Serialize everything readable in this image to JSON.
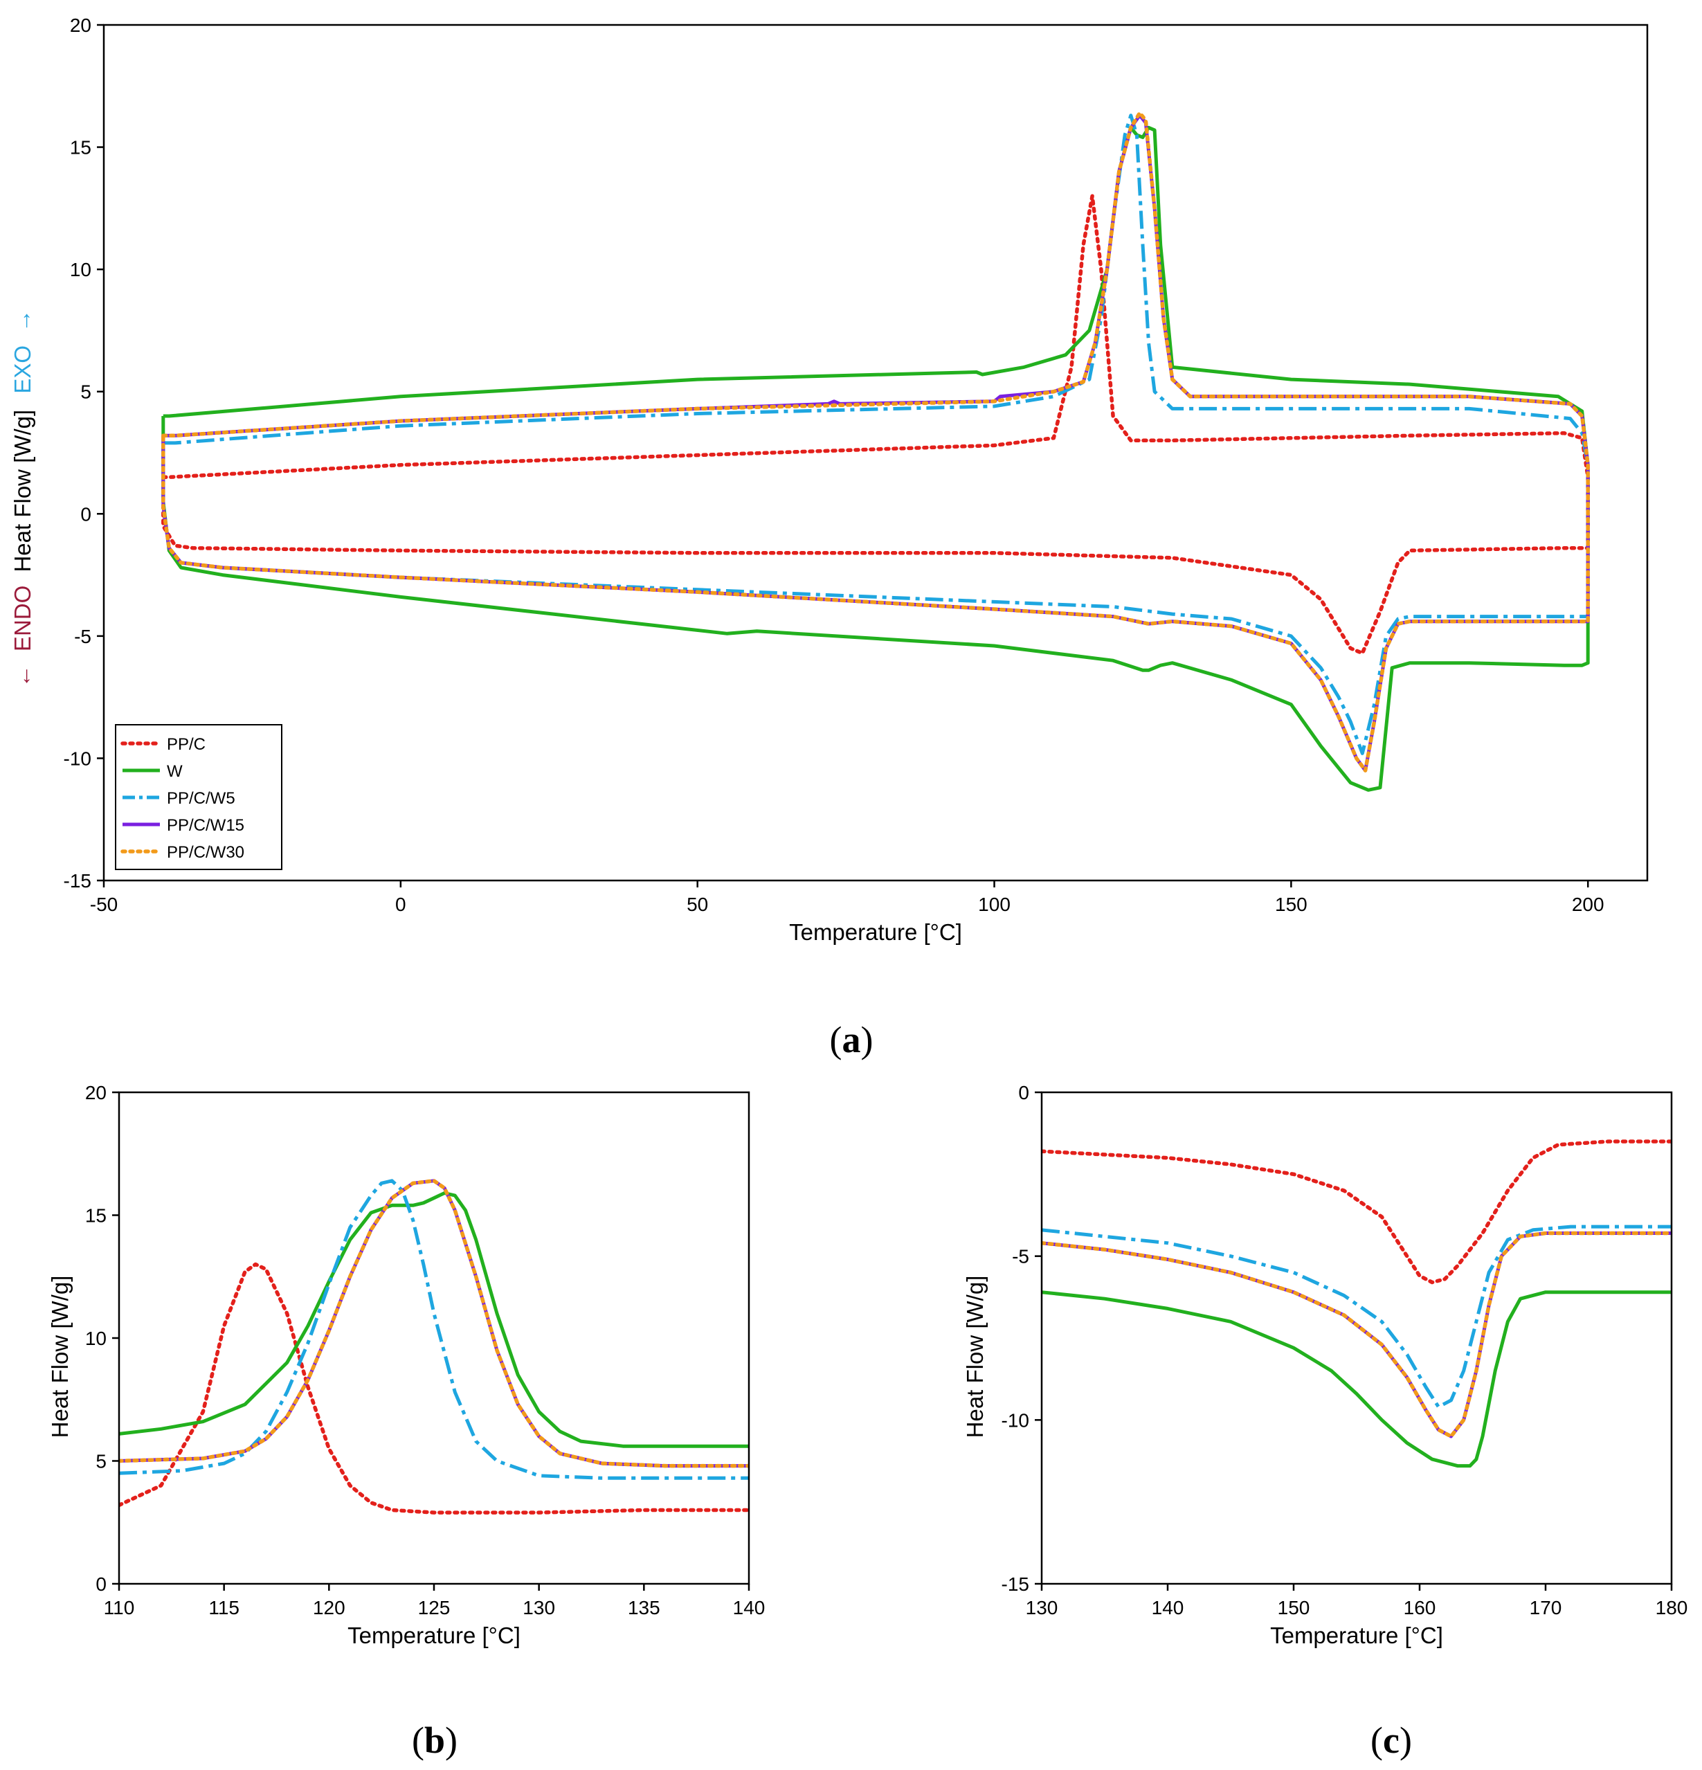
{
  "colors": {
    "PP/C": "#e3201b",
    "W": "#22b01e",
    "PP/C/W5": "#1ea6e0",
    "PP/C/W15": "#7a1fe0",
    "PP/C/W30": "#f29a1a",
    "endo": "#9b1a3a",
    "exo": "#2aa6e0"
  },
  "panels": {
    "a": {
      "open": "(",
      "letter": "a",
      "close": ")"
    },
    "b": {
      "open": "(",
      "letter": "b",
      "close": ")"
    },
    "c": {
      "open": "(",
      "letter": "c",
      "close": ")"
    }
  },
  "ylabel_a": {
    "arrow_left": "←",
    "endo": "ENDO",
    "middle": "Heat Flow [W/g]",
    "exo": "EXO",
    "arrow_right": "→"
  },
  "chart_data": [
    {
      "id": "a",
      "type": "line",
      "xlabel": "Temperature [°C]",
      "ylabel": "← ENDO Heat Flow [W/g] EXO →",
      "xlim": [
        -50,
        210
      ],
      "ylim": [
        -15,
        20
      ],
      "xticks": [
        -50,
        0,
        50,
        100,
        150,
        200
      ],
      "yticks": [
        -15,
        -10,
        -5,
        0,
        5,
        10,
        15,
        20
      ],
      "legend": {
        "position": "bottom-left",
        "entries": [
          "PP/C",
          "W",
          "PP/C/W5",
          "PP/C/W15",
          "PP/C/W30"
        ]
      },
      "series": [
        {
          "name": "PP/C",
          "style": "dotted",
          "x": [
            -40,
            -39,
            0,
            50,
            100,
            110,
            113,
            115,
            116.5,
            118,
            120,
            123,
            130,
            170,
            196,
            199,
            200,
            200,
            199,
            196,
            170,
            168,
            165,
            162,
            160,
            155,
            150,
            130,
            100,
            50,
            0,
            -35,
            -38,
            -40,
            -40
          ],
          "y": [
            1.5,
            1.5,
            2.0,
            2.4,
            2.8,
            3.1,
            6.0,
            11.0,
            13.0,
            10.0,
            4.0,
            3.0,
            3.0,
            3.2,
            3.3,
            3.1,
            1.5,
            -1.4,
            -1.4,
            -1.4,
            -1.5,
            -2.0,
            -4.0,
            -5.7,
            -5.5,
            -3.5,
            -2.5,
            -1.8,
            -1.6,
            -1.6,
            -1.5,
            -1.4,
            -1.3,
            -0.5,
            1.5
          ]
        },
        {
          "name": "W",
          "style": "solid",
          "x": [
            -40,
            -39,
            0,
            50,
            97,
            98,
            105,
            112,
            116,
            119,
            121,
            123,
            124,
            125,
            126,
            127,
            128,
            130,
            150,
            170,
            195,
            199,
            200,
            200,
            199,
            196,
            180,
            170,
            167,
            165,
            163,
            160,
            155,
            150,
            140,
            130,
            128,
            126,
            125,
            120,
            100,
            60,
            55,
            0,
            -30,
            -37,
            -39,
            -40,
            -40
          ],
          "y": [
            4.0,
            4.0,
            4.8,
            5.5,
            5.8,
            5.7,
            6.0,
            6.5,
            7.5,
            10.0,
            14.0,
            15.8,
            15.5,
            15.4,
            15.8,
            15.7,
            11.0,
            6.0,
            5.5,
            5.3,
            4.8,
            4.2,
            2.0,
            -6.1,
            -6.2,
            -6.2,
            -6.1,
            -6.1,
            -6.3,
            -11.2,
            -11.3,
            -11.0,
            -9.5,
            -7.8,
            -6.8,
            -6.1,
            -6.2,
            -6.4,
            -6.4,
            -6.0,
            -5.4,
            -4.8,
            -4.9,
            -3.4,
            -2.5,
            -2.2,
            -1.5,
            0.5,
            4.0
          ]
        },
        {
          "name": "PP/C/W5",
          "style": "dashdot",
          "x": [
            -40,
            -38,
            0,
            50,
            100,
            110,
            116,
            118,
            120,
            122,
            123,
            124,
            125,
            126,
            127,
            130,
            150,
            180,
            197,
            199,
            200,
            200,
            198,
            170,
            168,
            166,
            164,
            162,
            160,
            158,
            155,
            150,
            140,
            130,
            120,
            100,
            50,
            0,
            -30,
            -37,
            -39,
            -40,
            -40
          ],
          "y": [
            2.9,
            2.9,
            3.6,
            4.1,
            4.4,
            4.8,
            5.5,
            8.0,
            12.0,
            15.5,
            16.3,
            15.5,
            11.0,
            7.0,
            5.0,
            4.3,
            4.3,
            4.3,
            3.9,
            3.3,
            2.0,
            -4.2,
            -4.2,
            -4.2,
            -4.3,
            -5.0,
            -7.8,
            -9.8,
            -8.5,
            -7.5,
            -6.3,
            -5.0,
            -4.3,
            -4.1,
            -3.8,
            -3.6,
            -3.1,
            -2.6,
            -2.2,
            -2.0,
            -1.4,
            0.3,
            2.9
          ]
        },
        {
          "name": "PP/C/W15",
          "style": "solid",
          "x": [
            -40,
            -38,
            0,
            50,
            72,
            73,
            74,
            100,
            101,
            110,
            115,
            117,
            119,
            121,
            123,
            124.5,
            125.5,
            127,
            128.5,
            130,
            133,
            150,
            180,
            197,
            199,
            200,
            200,
            198,
            170,
            168,
            166,
            164,
            162.5,
            161,
            158,
            155,
            150,
            140,
            130,
            126,
            120,
            100,
            50,
            0,
            -30,
            -37,
            -39,
            -40,
            -40
          ],
          "y": [
            3.2,
            3.2,
            3.8,
            4.3,
            4.5,
            4.6,
            4.5,
            4.6,
            4.8,
            5.0,
            5.4,
            7.0,
            10.0,
            14.0,
            15.8,
            16.3,
            16.0,
            12.5,
            8.0,
            5.5,
            4.8,
            4.8,
            4.8,
            4.5,
            4.0,
            2.0,
            -4.4,
            -4.4,
            -4.4,
            -4.5,
            -5.5,
            -8.5,
            -10.5,
            -10.0,
            -8.3,
            -6.8,
            -5.3,
            -4.6,
            -4.4,
            -4.5,
            -4.2,
            -3.9,
            -3.2,
            -2.6,
            -2.2,
            -2.0,
            -1.4,
            0.3,
            3.2
          ]
        },
        {
          "name": "PP/C/W30",
          "style": "dotted",
          "x": [
            -40,
            -38,
            0,
            50,
            100,
            110,
            115,
            117,
            119,
            121,
            123,
            124.5,
            125.5,
            127,
            128.5,
            130,
            133,
            150,
            180,
            197,
            199,
            200,
            200,
            198,
            170,
            168,
            166,
            164,
            162.5,
            161,
            158,
            155,
            150,
            140,
            130,
            126,
            120,
            100,
            50,
            0,
            -30,
            -37,
            -39,
            -40,
            -40
          ],
          "y": [
            3.2,
            3.2,
            3.8,
            4.3,
            4.6,
            5.0,
            5.4,
            7.0,
            10.0,
            14.0,
            15.8,
            16.4,
            16.1,
            12.5,
            8.0,
            5.5,
            4.8,
            4.8,
            4.8,
            4.5,
            4.0,
            2.0,
            -4.4,
            -4.4,
            -4.4,
            -4.5,
            -5.5,
            -8.5,
            -10.5,
            -10.0,
            -8.3,
            -6.8,
            -5.3,
            -4.6,
            -4.4,
            -4.5,
            -4.2,
            -3.9,
            -3.2,
            -2.6,
            -2.2,
            -2.0,
            -1.4,
            0.3,
            3.2
          ]
        }
      ]
    },
    {
      "id": "b",
      "type": "line",
      "xlabel": "Temperature [°C]",
      "ylabel": "Heat Flow [W/g]",
      "xlim": [
        110,
        140
      ],
      "ylim": [
        0,
        20
      ],
      "xticks": [
        110,
        115,
        120,
        125,
        130,
        135,
        140
      ],
      "yticks": [
        0,
        5,
        10,
        15,
        20
      ],
      "series": [
        {
          "name": "PP/C",
          "style": "dotted",
          "x": [
            110,
            112,
            114,
            115,
            116,
            116.5,
            117,
            118,
            119,
            120,
            121,
            122,
            123,
            125,
            130,
            135,
            140
          ],
          "y": [
            3.2,
            4.0,
            7.0,
            10.5,
            12.7,
            13.0,
            12.8,
            11.0,
            8.0,
            5.5,
            4.0,
            3.3,
            3.0,
            2.9,
            2.9,
            3.0,
            3.0
          ]
        },
        {
          "name": "W",
          "style": "solid",
          "x": [
            110,
            112,
            114,
            116,
            118,
            119,
            120,
            121,
            122,
            123,
            123.5,
            124,
            124.5,
            125,
            125.5,
            126,
            126.5,
            127,
            128,
            129,
            130,
            131,
            132,
            134,
            137,
            140
          ],
          "y": [
            6.1,
            6.3,
            6.6,
            7.3,
            9.0,
            10.5,
            12.3,
            14.0,
            15.1,
            15.4,
            15.4,
            15.4,
            15.5,
            15.7,
            15.9,
            15.8,
            15.2,
            14.0,
            11.0,
            8.5,
            7.0,
            6.2,
            5.8,
            5.6,
            5.6,
            5.6
          ]
        },
        {
          "name": "PP/C/W5",
          "style": "dashdot",
          "x": [
            110,
            113,
            115,
            116,
            117,
            118,
            119,
            120,
            121,
            122,
            122.5,
            123,
            123.5,
            124,
            124.5,
            125,
            126,
            127,
            128,
            130,
            133,
            136,
            140
          ],
          "y": [
            4.5,
            4.6,
            4.9,
            5.3,
            6.2,
            7.8,
            9.8,
            12.2,
            14.5,
            15.8,
            16.3,
            16.4,
            16.0,
            14.8,
            13.0,
            11.0,
            7.8,
            5.8,
            5.0,
            4.4,
            4.3,
            4.3,
            4.3
          ]
        },
        {
          "name": "PP/C/W15",
          "style": "solid",
          "x": [
            110,
            114,
            116,
            117,
            118,
            119,
            120,
            121,
            122,
            123,
            124,
            125,
            125.5,
            126,
            127,
            128,
            129,
            130,
            131,
            133,
            136,
            140
          ],
          "y": [
            5.0,
            5.1,
            5.4,
            5.9,
            6.8,
            8.3,
            10.3,
            12.5,
            14.4,
            15.7,
            16.3,
            16.4,
            16.1,
            15.2,
            12.5,
            9.5,
            7.3,
            6.0,
            5.3,
            4.9,
            4.8,
            4.8
          ]
        },
        {
          "name": "PP/C/W30",
          "style": "dotted",
          "x": [
            110,
            114,
            116,
            117,
            118,
            119,
            120,
            121,
            122,
            123,
            124,
            125,
            125.5,
            126,
            127,
            128,
            129,
            130,
            131,
            133,
            136,
            140
          ],
          "y": [
            5.0,
            5.1,
            5.4,
            5.9,
            6.8,
            8.3,
            10.3,
            12.5,
            14.4,
            15.7,
            16.3,
            16.4,
            16.1,
            15.2,
            12.5,
            9.5,
            7.3,
            6.0,
            5.3,
            4.9,
            4.8,
            4.8
          ]
        }
      ]
    },
    {
      "id": "c",
      "type": "line",
      "xlabel": "Temperature [°C]",
      "ylabel": "Heat Flow [W/g]",
      "xlim": [
        130,
        180
      ],
      "ylim": [
        -15,
        0
      ],
      "xticks": [
        130,
        140,
        150,
        160,
        170,
        180
      ],
      "yticks": [
        -15,
        -10,
        -5,
        0
      ],
      "series": [
        {
          "name": "PP/C",
          "style": "dotted",
          "x": [
            130,
            140,
            145,
            150,
            154,
            157,
            158.5,
            160,
            161,
            162,
            163,
            165,
            167,
            169,
            171,
            175,
            180
          ],
          "y": [
            -1.8,
            -2.0,
            -2.2,
            -2.5,
            -3.0,
            -3.8,
            -4.7,
            -5.6,
            -5.8,
            -5.7,
            -5.3,
            -4.3,
            -3.0,
            -2.0,
            -1.6,
            -1.5,
            -1.5
          ]
        },
        {
          "name": "W",
          "style": "solid",
          "x": [
            130,
            135,
            140,
            145,
            150,
            153,
            155,
            157,
            159,
            161,
            163,
            164,
            164.5,
            165,
            166,
            167,
            168,
            170,
            175,
            180
          ],
          "y": [
            -6.1,
            -6.3,
            -6.6,
            -7.0,
            -7.8,
            -8.5,
            -9.2,
            -10.0,
            -10.7,
            -11.2,
            -11.4,
            -11.4,
            -11.2,
            -10.5,
            -8.5,
            -7.0,
            -6.3,
            -6.1,
            -6.1,
            -6.1
          ]
        },
        {
          "name": "PP/C/W5",
          "style": "dashdot",
          "x": [
            130,
            135,
            140,
            145,
            150,
            154,
            157,
            159,
            160.5,
            161.5,
            162.5,
            163.5,
            164.5,
            165.5,
            167,
            169,
            172,
            176,
            180
          ],
          "y": [
            -4.2,
            -4.4,
            -4.6,
            -5.0,
            -5.5,
            -6.2,
            -7.0,
            -8.0,
            -9.0,
            -9.6,
            -9.4,
            -8.5,
            -7.0,
            -5.5,
            -4.5,
            -4.2,
            -4.1,
            -4.1,
            -4.1
          ]
        },
        {
          "name": "PP/C/W15",
          "style": "solid",
          "x": [
            130,
            135,
            140,
            145,
            150,
            154,
            157,
            159,
            160.5,
            161.5,
            162.5,
            163.5,
            164.5,
            165.5,
            166.5,
            168,
            170,
            175,
            180
          ],
          "y": [
            -4.6,
            -4.8,
            -5.1,
            -5.5,
            -6.1,
            -6.8,
            -7.7,
            -8.7,
            -9.7,
            -10.3,
            -10.5,
            -10.0,
            -8.5,
            -6.5,
            -5.0,
            -4.4,
            -4.3,
            -4.3,
            -4.3
          ]
        },
        {
          "name": "PP/C/W30",
          "style": "dotted",
          "x": [
            130,
            135,
            140,
            145,
            150,
            154,
            157,
            159,
            160.5,
            161.5,
            162.5,
            163.5,
            164.5,
            165.5,
            166.5,
            168,
            170,
            175,
            180
          ],
          "y": [
            -4.6,
            -4.8,
            -5.1,
            -5.5,
            -6.1,
            -6.8,
            -7.7,
            -8.7,
            -9.7,
            -10.3,
            -10.5,
            -10.0,
            -8.5,
            -6.5,
            -5.0,
            -4.4,
            -4.3,
            -4.3,
            -4.3
          ]
        }
      ]
    }
  ]
}
